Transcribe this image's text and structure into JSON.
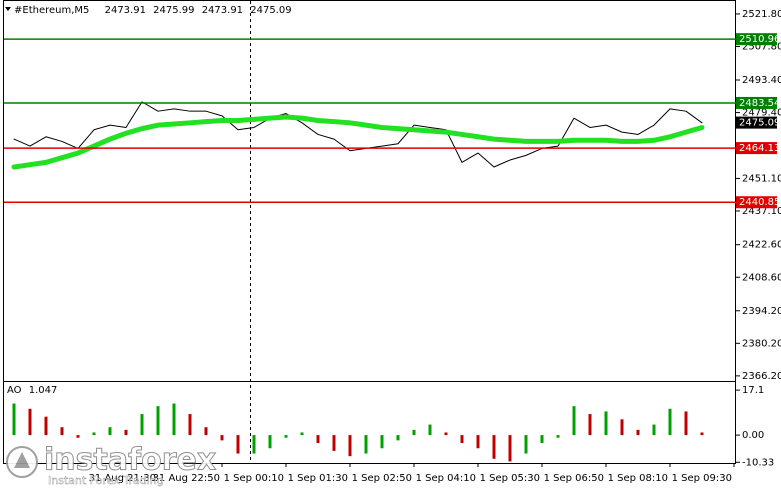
{
  "chart_data": [
    {
      "type": "line",
      "title": "#Ethereum,M5",
      "ohlc": [
        2473.91,
        2475.99,
        2473.91,
        2475.09
      ],
      "last": 2475.09,
      "last_color": "#000000",
      "categories": [
        null,
        null,
        null,
        null,
        null,
        null,
        null,
        null,
        null,
        "31 Aug 21:30",
        null,
        null,
        null,
        "31 Aug 22:50",
        null,
        null,
        null,
        "1 Sep 00:10",
        null,
        null,
        null,
        "1 Sep 01:30",
        null,
        null,
        null,
        "1 Sep 02:50",
        null,
        null,
        null,
        "1 Sep 04:10",
        null,
        null,
        null,
        "1 Sep 05:30",
        null,
        null,
        null,
        "1 Sep 06:50",
        null,
        null,
        null,
        "1 Sep 08:10",
        null,
        null,
        null,
        "1 Sep 09:30"
      ],
      "series": [
        {
          "color": "#000000",
          "width": 1,
          "values": [
            2468,
            2465,
            2469,
            2467,
            2464,
            2472,
            2474,
            2473,
            2484,
            2480,
            2481,
            2480,
            2480,
            2478,
            2472,
            2473,
            2477,
            2479,
            2475,
            2470,
            2468,
            2463,
            2464,
            2465,
            2466,
            2474,
            2473,
            2472,
            2458,
            2462,
            2456,
            2459,
            2461,
            2464,
            2465,
            2477,
            2473,
            2474,
            2471,
            2470,
            2474,
            2481,
            2480,
            2475,
            null,
            null
          ]
        },
        {
          "color": "#22e022",
          "width": 5,
          "values": [
            2456,
            2457,
            2458,
            2460,
            2462,
            2465,
            2468,
            2470.5,
            2472.5,
            2474,
            2474.5,
            2475,
            2475.5,
            2476,
            2476,
            2476.5,
            2477,
            2477.5,
            2477,
            2476,
            2475.5,
            2475,
            2474,
            2473,
            2472.5,
            2472,
            2471.5,
            2471,
            2470,
            2469,
            2468,
            2467.5,
            2467,
            2467,
            2467,
            2467.5,
            2467.5,
            2467.5,
            2467,
            2467,
            2467.5,
            2469,
            2471,
            2473,
            null,
            null
          ]
        }
      ],
      "levels": [
        {
          "value": 2510.96,
          "color": "#008000"
        },
        {
          "value": 2483.54,
          "color": "#008000"
        },
        {
          "value": 2464.13,
          "color": "#e00000"
        },
        {
          "value": 2440.85,
          "color": "#e00000"
        }
      ],
      "ylim": [
        2364.0,
        2527.8
      ],
      "yticks": [
        {
          "value": 2521.8,
          "label": "2521.80"
        },
        {
          "value": 2507.8,
          "label": "2507.80"
        },
        {
          "value": 2493.4,
          "label": "2493.40"
        },
        {
          "value": 2479.4,
          "label": "2479.40"
        },
        {
          "value": 2451.1,
          "label": "2451.10"
        },
        {
          "value": 2437.1,
          "label": "2437.10"
        },
        {
          "value": 2422.6,
          "label": "2422.60"
        },
        {
          "value": 2408.6,
          "label": "2408.60"
        },
        {
          "value": 2394.2,
          "label": "2394.20"
        },
        {
          "value": 2380.2,
          "label": "2380.20"
        },
        {
          "value": 2366.2,
          "label": "2366.20"
        }
      ]
    },
    {
      "type": "bar",
      "title": "AO",
      "current": 1.047,
      "up_color": "#00a000",
      "down_color": "#c00000",
      "values": [
        12,
        10,
        7,
        3,
        -1,
        1,
        3,
        2,
        8,
        11,
        12,
        8,
        3,
        -2,
        -7,
        -7,
        -5,
        -1,
        1,
        -3,
        -6,
        -8,
        -7,
        -5,
        -2,
        2,
        4,
        1,
        -3,
        -5,
        -9,
        -10,
        -7,
        -3,
        -1,
        11,
        8,
        9,
        6,
        2,
        4,
        10,
        9,
        1
      ],
      "ylim": [
        -10.6,
        19.8
      ],
      "yticks": [
        17.1,
        {
          "value": 0,
          "label": "0.00"
        },
        -10.33
      ]
    }
  ],
  "watermark": {
    "brand": "instaforex",
    "tagline": "Instant Forex Trading"
  }
}
